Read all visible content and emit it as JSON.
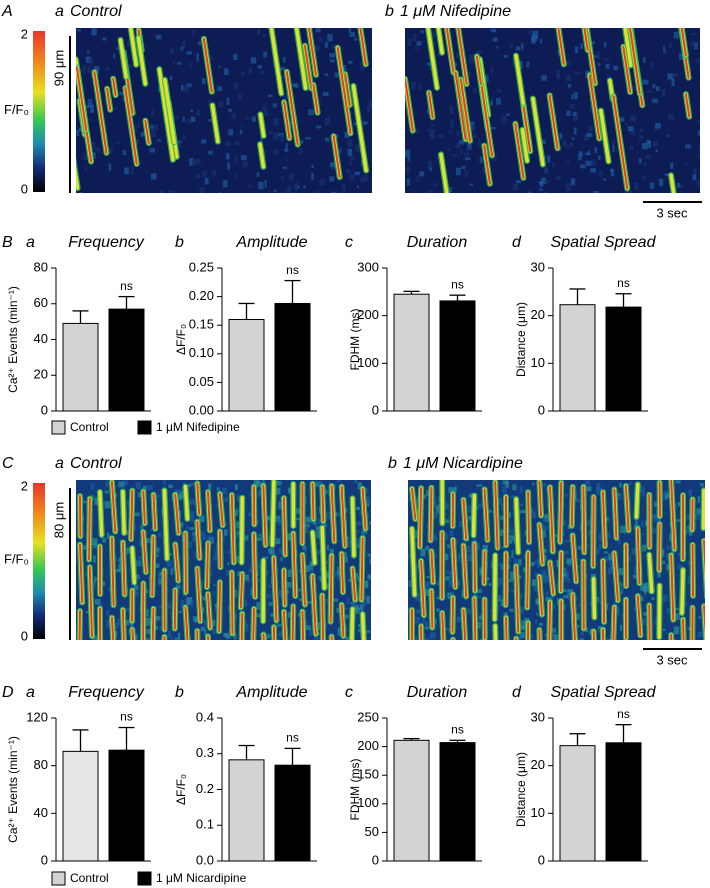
{
  "figure": {
    "A": {
      "label": "A",
      "a": "a",
      "a_title": "Control",
      "b": "b",
      "b_title": "1 μM Nifedipine",
      "cbar_max": "2",
      "cbar_min": "0",
      "cbar_label": "F/F₀",
      "length": "90 μm",
      "time": "3 sec"
    },
    "B": {
      "label": "B"
    },
    "C": {
      "label": "C",
      "a": "a",
      "a_title": "Control",
      "b": "b",
      "b_title": "1 μM Nicardipine",
      "cbar_max": "2",
      "cbar_min": "0",
      "cbar_label": "F/F₀",
      "length": "80 μm",
      "time": "3 sec"
    },
    "D": {
      "label": "D"
    }
  },
  "legends": [
    {
      "items": [
        {
          "name": "Control",
          "color": "#d3d3d3"
        },
        {
          "name": "1 μM Nifedipine",
          "color": "#000000"
        }
      ]
    },
    {
      "items": [
        {
          "name": "Control",
          "color": "#d3d3d3"
        },
        {
          "name": "1 μM Nicardipine",
          "color": "#000000"
        }
      ]
    }
  ],
  "chart_data": [
    {
      "type": "bar",
      "panel": "a",
      "title": "Frequency",
      "ylabel": "Ca²⁺ Events (min⁻¹)",
      "values": [
        49,
        57
      ],
      "errors": [
        7,
        7
      ],
      "colors": [
        "#d3d3d3",
        "#000000"
      ],
      "annotation": "ns",
      "ylim": [
        0,
        80
      ],
      "yticks": [
        0,
        20,
        40,
        60,
        80
      ]
    },
    {
      "type": "bar",
      "panel": "b",
      "title": "Amplitude",
      "ylabel": "ΔF/F₀",
      "values": [
        0.16,
        0.188
      ],
      "errors": [
        0.028,
        0.04
      ],
      "colors": [
        "#d3d3d3",
        "#000000"
      ],
      "annotation": "ns",
      "ylim": [
        0,
        0.25
      ],
      "yticks": [
        {
          "value": 0,
          "label": "0.00"
        },
        0.05,
        {
          "value": 0.1,
          "label": "0.10"
        },
        0.15,
        {
          "value": 0.2,
          "label": "0.20"
        },
        0.25
      ]
    },
    {
      "type": "bar",
      "panel": "c",
      "title": "Duration",
      "ylabel": "FDHM (ms)",
      "values": [
        245,
        231
      ],
      "errors": [
        6,
        12
      ],
      "colors": [
        "#d3d3d3",
        "#000000"
      ],
      "annotation": "ns",
      "ylim": [
        0,
        300
      ],
      "yticks": [
        0,
        100,
        200,
        300
      ]
    },
    {
      "type": "bar",
      "panel": "d",
      "title": "Spatial Spread",
      "ylabel": "Distance (μm)",
      "values": [
        22.3,
        21.8
      ],
      "errors": [
        3.3,
        2.8
      ],
      "colors": [
        "#d3d3d3",
        "#000000"
      ],
      "annotation": "ns",
      "ylim": [
        0,
        30
      ],
      "yticks": [
        0,
        10,
        20,
        30
      ]
    },
    {
      "type": "bar",
      "panel": "a",
      "title": "Frequency",
      "ylabel": "Ca²⁺ Events (min⁻¹)",
      "values": [
        92,
        93
      ],
      "errors": [
        18,
        19
      ],
      "colors": [
        "#e6e6e6",
        "#000000"
      ],
      "annotation": "ns",
      "ylim": [
        0,
        120
      ],
      "yticks": [
        0,
        40,
        80,
        120
      ]
    },
    {
      "type": "bar",
      "panel": "b",
      "title": "Amplitude",
      "ylabel": "ΔF/F₀",
      "values": [
        0.283,
        0.268
      ],
      "errors": [
        0.04,
        0.047
      ],
      "colors": [
        "#d3d3d3",
        "#000000"
      ],
      "annotation": "ns",
      "ylim": [
        0,
        0.4
      ],
      "yticks": [
        {
          "value": 0,
          "label": "0.0"
        },
        0.1,
        0.2,
        0.3,
        0.4
      ]
    },
    {
      "type": "bar",
      "panel": "c",
      "title": "Duration",
      "ylabel": "FDHM (ms)",
      "values": [
        211,
        207
      ],
      "errors": [
        3,
        4
      ],
      "colors": [
        "#d3d3d3",
        "#000000"
      ],
      "annotation": "ns",
      "ylim": [
        0,
        250
      ],
      "yticks": [
        0,
        50,
        100,
        150,
        200,
        250
      ]
    },
    {
      "type": "bar",
      "panel": "d",
      "title": "Spatial Spread",
      "ylabel": "Distance (μm)",
      "values": [
        24.2,
        24.8
      ],
      "errors": [
        2.5,
        3.8
      ],
      "colors": [
        "#d3d3d3",
        "#000000"
      ],
      "annotation": "ns",
      "ylim": [
        0,
        30
      ],
      "yticks": [
        0,
        10,
        20,
        30
      ]
    }
  ]
}
